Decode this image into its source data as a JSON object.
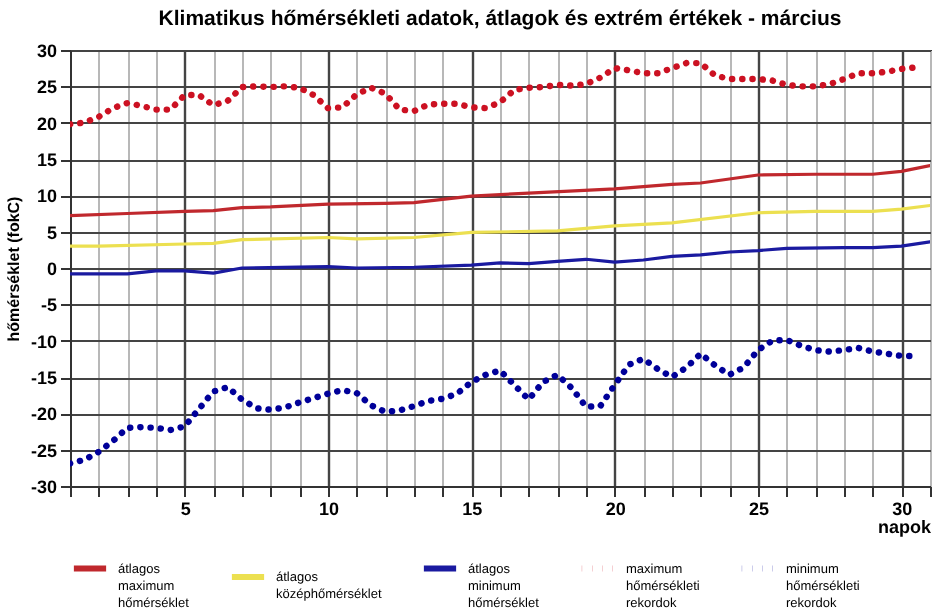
{
  "chart_data": {
    "type": "line",
    "title": "Klimatikus hőmérsékleti adatok, átlagok és extrém értékek - március",
    "xlabel": "napok",
    "ylabel": "hőmérséklet (fokC)",
    "xlim": [
      1,
      31
    ],
    "ylim": [
      -30,
      30
    ],
    "xticks": [
      {
        "value": 1,
        "label": null
      },
      {
        "value": 2,
        "label": null
      },
      {
        "value": 3,
        "label": null
      },
      {
        "value": 4,
        "label": null
      },
      5,
      {
        "value": 6,
        "label": null
      },
      {
        "value": 7,
        "label": null
      },
      {
        "value": 8,
        "label": null
      },
      {
        "value": 9,
        "label": null
      },
      10,
      {
        "value": 11,
        "label": null
      },
      {
        "value": 12,
        "label": null
      },
      {
        "value": 13,
        "label": null
      },
      {
        "value": 14,
        "label": null
      },
      15,
      {
        "value": 16,
        "label": null
      },
      {
        "value": 17,
        "label": null
      },
      {
        "value": 18,
        "label": null
      },
      {
        "value": 19,
        "label": null
      },
      20,
      {
        "value": 21,
        "label": null
      },
      {
        "value": 22,
        "label": null
      },
      {
        "value": 23,
        "label": null
      },
      {
        "value": 24,
        "label": null
      },
      25,
      {
        "value": 26,
        "label": null
      },
      {
        "value": 27,
        "label": null
      },
      {
        "value": 28,
        "label": null
      },
      {
        "value": 29,
        "label": null
      },
      30,
      {
        "value": 31,
        "label": null
      }
    ],
    "yticks": [
      -30,
      -25,
      -20,
      -15,
      -10,
      -5,
      0,
      5,
      10,
      15,
      20,
      25,
      30
    ],
    "grid": true,
    "legend": "bottom",
    "marker": "none",
    "series": [
      {
        "name": "átlagos maximum hőmérséklet",
        "color": "#c0282d",
        "line_style": "solid",
        "x": [
          1,
          3,
          5,
          6,
          7,
          8,
          10,
          12,
          13,
          15,
          17,
          20,
          22,
          23,
          25,
          27,
          29,
          30,
          31
        ],
        "values": [
          7.2,
          7.5,
          7.8,
          7.9,
          8.3,
          8.4,
          8.8,
          8.9,
          9,
          9.9,
          10.3,
          10.9,
          11.5,
          11.7,
          12.8,
          12.9,
          12.9,
          13.3,
          14.1
        ]
      },
      {
        "name": "átlagos középhőmérséklet",
        "color": "#ece050",
        "line_style": "solid",
        "x": [
          1,
          2,
          5,
          6,
          7,
          10,
          11,
          13,
          15,
          18,
          20,
          22,
          25,
          27,
          29,
          30,
          31
        ],
        "values": [
          3.0,
          3.0,
          3.3,
          3.4,
          3.9,
          4.2,
          4.0,
          4.2,
          4.9,
          5.1,
          5.8,
          6.2,
          7.6,
          7.8,
          7.8,
          8.1,
          8.6
        ]
      },
      {
        "name": "átlagos minimum hőmérséklet",
        "color": "#1a1aa0",
        "line_style": "solid",
        "x": [
          1,
          3,
          4,
          5,
          6,
          7,
          10,
          11,
          13,
          15,
          16,
          17,
          18,
          19,
          20,
          21,
          22,
          23,
          24,
          25,
          26,
          28,
          29,
          30,
          31
        ],
        "values": [
          -0.8,
          -0.8,
          -0.4,
          -0.4,
          -0.7,
          0,
          0.2,
          0,
          0.1,
          0.4,
          0.7,
          0.6,
          0.9,
          1.2,
          0.8,
          1.1,
          1.6,
          1.8,
          2.2,
          2.4,
          2.7,
          2.8,
          2.8,
          3.0,
          3.6
        ]
      },
      {
        "name": "maximum hőmérsékleti rekordok",
        "color": "#cc1122",
        "line_style": "dotted",
        "x": [
          1,
          1.5,
          2,
          2.5,
          3,
          3.5,
          4,
          4.5,
          5,
          5.5,
          6,
          6.5,
          7,
          7.5,
          8,
          8.5,
          9,
          9.5,
          10,
          10.5,
          11,
          11.5,
          12,
          12.5,
          13,
          13.5,
          14,
          14.5,
          15,
          15.5,
          16,
          16.5,
          17,
          17.5,
          18,
          18.5,
          19,
          19.5,
          20,
          20.5,
          21,
          21.5,
          22,
          22.5,
          23,
          23.5,
          24,
          24.5,
          25,
          25.5,
          26,
          26.5,
          27,
          27.5,
          28,
          28.5,
          29,
          29.5,
          30,
          30.5
        ],
        "values": [
          19.8,
          20,
          20.8,
          22,
          22.7,
          22.3,
          21.8,
          21.8,
          23.8,
          23.8,
          22.4,
          23,
          24.9,
          25,
          24.9,
          25,
          24.8,
          23.8,
          22,
          22.1,
          23.9,
          24.8,
          24,
          21.8,
          21.6,
          22.5,
          22.6,
          22.6,
          22.1,
          22,
          22.8,
          24.5,
          24.8,
          24.9,
          25.2,
          25.1,
          25.3,
          26.2,
          27.5,
          27.2,
          26.8,
          26.8,
          27.5,
          28.2,
          28.2,
          26.5,
          26,
          26,
          26,
          25.8,
          25.2,
          25,
          25,
          25.3,
          26,
          26.8,
          26.8,
          27,
          27.4,
          27.6
        ]
      },
      {
        "name": "minimum hőmérsékleti rekordok",
        "color": "#000099",
        "line_style": "dotted",
        "x": [
          1,
          1.5,
          2,
          2.5,
          3,
          3.5,
          4,
          4.5,
          5,
          5.5,
          6,
          6.5,
          7,
          7.5,
          8,
          8.5,
          9,
          9.5,
          10,
          10.5,
          11,
          11.5,
          12,
          12.5,
          13,
          13.5,
          14,
          14.5,
          15,
          15.5,
          16,
          16.5,
          17,
          17.5,
          18,
          18.5,
          19,
          19.5,
          20,
          20.5,
          21,
          21.5,
          22,
          22.5,
          23,
          23.5,
          24,
          24.5,
          25,
          25.5,
          26,
          26.5,
          27,
          27.5,
          28,
          28.5,
          29,
          29.5,
          30,
          30.5
        ],
        "values": [
          -26.9,
          -26.4,
          -25.3,
          -23.8,
          -22,
          -21.9,
          -22,
          -22.3,
          -21.8,
          -19.4,
          -17,
          -16.4,
          -18.1,
          -19.3,
          -19.5,
          -19.2,
          -18.5,
          -17.9,
          -17.3,
          -16.8,
          -17.2,
          -18.9,
          -19.8,
          -19.6,
          -19,
          -18.3,
          -18,
          -17.3,
          -15.7,
          -14.7,
          -14.1,
          -16.1,
          -18.1,
          -15.7,
          -14.7,
          -16.5,
          -19.1,
          -19,
          -16.1,
          -13.3,
          -12.5,
          -13.9,
          -15,
          -13.7,
          -11.8,
          -13.4,
          -14.7,
          -13.7,
          -11.3,
          -10,
          -9.9,
          -10.7,
          -11.3,
          -11.5,
          -11.3,
          -11,
          -11.5,
          -11.8,
          -12.1,
          -12.1
        ]
      }
    ]
  }
}
